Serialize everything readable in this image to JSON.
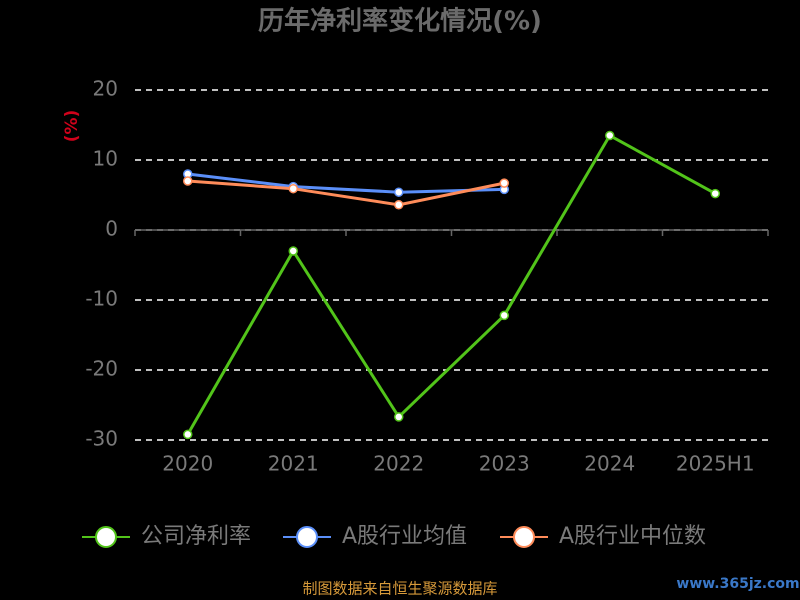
{
  "chart_data": {
    "type": "line",
    "title": "历年净利率变化情况(%)",
    "y_label": "(%)",
    "categories": [
      "2020",
      "2021",
      "2022",
      "2023",
      "2024",
      "2025H1"
    ],
    "series": [
      {
        "name": "公司净利率",
        "color": "#52c41a",
        "values": [
          -29.2,
          -3.0,
          -26.7,
          -12.2,
          13.5,
          5.2
        ]
      },
      {
        "name": "A股行业均值",
        "color": "#5b8ff9",
        "values": [
          8.0,
          6.2,
          5.4,
          5.8,
          null,
          null
        ]
      },
      {
        "name": "A股行业中位数",
        "color": "#ff8c5a",
        "values": [
          7.0,
          5.9,
          3.6,
          6.7,
          null,
          null
        ]
      }
    ],
    "ylim": [
      -30,
      20
    ],
    "yticks": [
      -30,
      -20,
      -10,
      0,
      10,
      20
    ],
    "grid": true,
    "source": "制图数据来自恒生聚源数据库",
    "watermark": "www.365jz.com"
  }
}
